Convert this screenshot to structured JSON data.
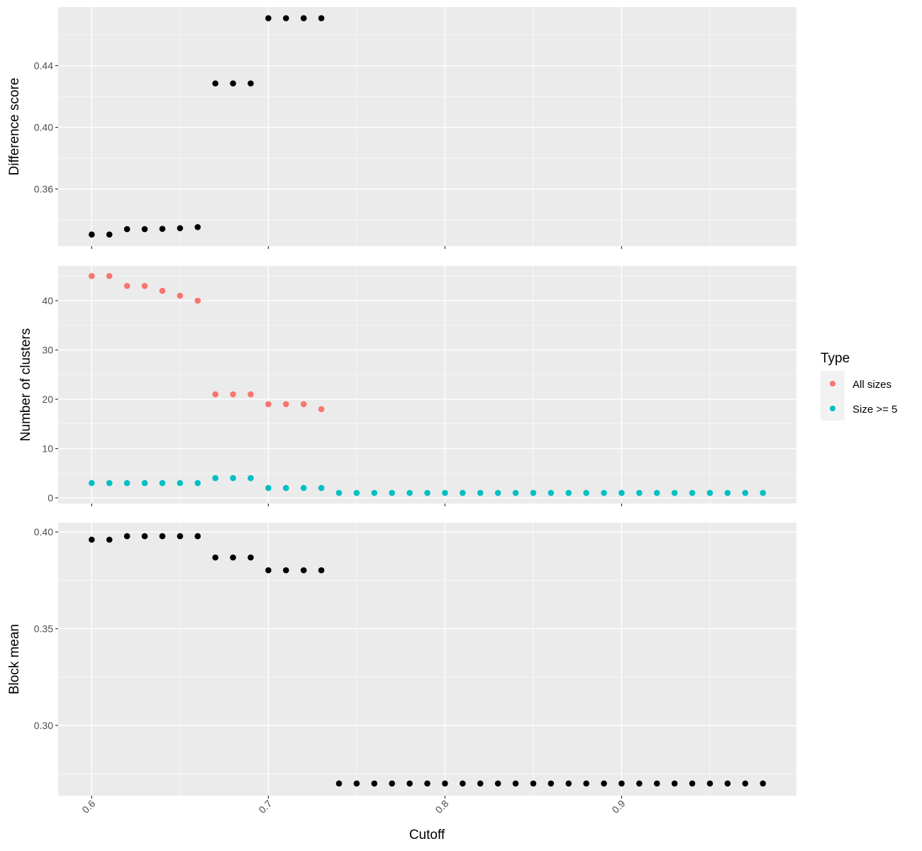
{
  "chart_data": {
    "type": "scatter",
    "xlabel": "Cutoff",
    "xlim": [
      0.581,
      0.999
    ],
    "xticks": [
      0.6,
      0.7,
      0.8,
      0.9
    ],
    "xtick_labels": [
      "0.6",
      "0.7",
      "0.8",
      "0.9"
    ],
    "grid": true,
    "legend": {
      "title": "Type",
      "position": "right",
      "entries": [
        {
          "name": "All sizes",
          "color": "#F8766D"
        },
        {
          "name": "Size >= 5",
          "color": "#00BFC4"
        }
      ]
    },
    "panels": [
      {
        "ylabel": "Difference score",
        "ylim": [
          0.323,
          0.478
        ],
        "yticks": [
          0.36,
          0.4,
          0.44
        ],
        "ytick_labels": [
          "0.36",
          "0.40",
          "0.44"
        ],
        "series": [
          {
            "color": "#000000",
            "x": [
              0.6,
              0.61,
              0.62,
              0.63,
              0.64,
              0.65,
              0.66,
              0.67,
              0.68,
              0.69,
              0.7,
              0.71,
              0.72,
              0.73
            ],
            "y": [
              0.3305,
              0.3305,
              0.334,
              0.334,
              0.3342,
              0.3346,
              0.3353,
              0.4285,
              0.4285,
              0.4285,
              0.4708,
              0.4708,
              0.4708,
              0.4708
            ]
          }
        ]
      },
      {
        "ylabel": "Number of clusters",
        "ylim": [
          -1.15,
          47.05
        ],
        "yticks": [
          0,
          10,
          20,
          30,
          40
        ],
        "ytick_labels": [
          "0",
          "10",
          "20",
          "30",
          "40"
        ],
        "series": [
          {
            "name": "All sizes",
            "color": "#F8766D",
            "x": [
              0.6,
              0.61,
              0.62,
              0.63,
              0.64,
              0.65,
              0.66,
              0.67,
              0.68,
              0.69,
              0.7,
              0.71,
              0.72,
              0.73
            ],
            "y": [
              45,
              45,
              43,
              43,
              42,
              41,
              40,
              21,
              21,
              21,
              19,
              19,
              19,
              18
            ]
          },
          {
            "name": "Size >= 5",
            "color": "#00BFC4",
            "x": [
              0.6,
              0.61,
              0.62,
              0.63,
              0.64,
              0.65,
              0.66,
              0.67,
              0.68,
              0.69,
              0.7,
              0.71,
              0.72,
              0.73,
              0.74,
              0.75,
              0.76,
              0.77,
              0.78,
              0.79,
              0.8,
              0.81,
              0.82,
              0.83,
              0.84,
              0.85,
              0.86,
              0.87,
              0.88,
              0.89,
              0.9,
              0.91,
              0.92,
              0.93,
              0.94,
              0.95,
              0.96,
              0.97,
              0.98
            ],
            "y": [
              3,
              3,
              3,
              3,
              3,
              3,
              3,
              4,
              4,
              4,
              2,
              2,
              2,
              2,
              1,
              1,
              1,
              1,
              1,
              1,
              1,
              1,
              1,
              1,
              1,
              1,
              1,
              1,
              1,
              1,
              1,
              1,
              1,
              1,
              1,
              1,
              1,
              1,
              1
            ]
          }
        ]
      },
      {
        "ylabel": "Block mean",
        "ylim": [
          0.2637,
          0.4048
        ],
        "yticks": [
          0.3,
          0.35,
          0.4
        ],
        "ytick_labels": [
          "0.30",
          "0.35",
          "0.40"
        ],
        "series": [
          {
            "color": "#000000",
            "x": [
              0.6,
              0.61,
              0.62,
              0.63,
              0.64,
              0.65,
              0.66,
              0.67,
              0.68,
              0.69,
              0.7,
              0.71,
              0.72,
              0.73,
              0.74,
              0.75,
              0.76,
              0.77,
              0.78,
              0.79,
              0.8,
              0.81,
              0.82,
              0.83,
              0.84,
              0.85,
              0.86,
              0.87,
              0.88,
              0.89,
              0.9,
              0.91,
              0.92,
              0.93,
              0.94,
              0.95,
              0.96,
              0.97,
              0.98
            ],
            "y": [
              0.396,
              0.396,
              0.3978,
              0.3978,
              0.3978,
              0.3978,
              0.3978,
              0.3868,
              0.3868,
              0.3868,
              0.3802,
              0.3802,
              0.3802,
              0.3802,
              0.27,
              0.27,
              0.27,
              0.27,
              0.27,
              0.27,
              0.27,
              0.27,
              0.27,
              0.27,
              0.27,
              0.27,
              0.27,
              0.27,
              0.27,
              0.27,
              0.27,
              0.27,
              0.27,
              0.27,
              0.27,
              0.27,
              0.27,
              0.27,
              0.27
            ]
          }
        ]
      }
    ]
  }
}
